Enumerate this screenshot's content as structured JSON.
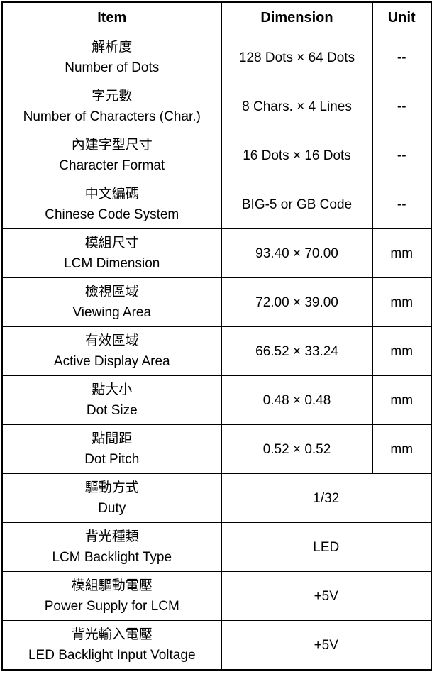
{
  "header": {
    "item": "Item",
    "dimension": "Dimension",
    "unit": "Unit"
  },
  "rows": [
    {
      "zh": "解析度",
      "en": "Number of Dots",
      "dimension": "128 Dots × 64 Dots",
      "unit": "--"
    },
    {
      "zh": "字元數",
      "en": "Number of Characters (Char.)",
      "dimension": "8 Chars. × 4 Lines",
      "unit": "--"
    },
    {
      "zh": "內建字型尺寸",
      "en": "Character Format",
      "dimension": "16 Dots × 16 Dots",
      "unit": "--"
    },
    {
      "zh": "中文編碼",
      "en": "Chinese Code System",
      "dimension": "BIG-5 or GB Code",
      "unit": "--"
    },
    {
      "zh": "模組尺寸",
      "en": "LCM Dimension",
      "dimension": "93.40 × 70.00",
      "unit": "mm"
    },
    {
      "zh": "檢視區域",
      "en": "Viewing Area",
      "dimension": "72.00 × 39.00",
      "unit": "mm"
    },
    {
      "zh": "有效區域",
      "en": "Active Display Area",
      "dimension": "66.52 × 33.24",
      "unit": "mm"
    },
    {
      "zh": "點大小",
      "en": "Dot Size",
      "dimension": "0.48 × 0.48",
      "unit": "mm"
    },
    {
      "zh": "點間距",
      "en": "Dot Pitch",
      "dimension": "0.52 × 0.52",
      "unit": "mm"
    },
    {
      "zh": "驅動方式",
      "en": "Duty",
      "dimension": "1/32"
    },
    {
      "zh": "背光種類",
      "en": "LCM Backlight Type",
      "dimension": "LED"
    },
    {
      "zh": "模組驅動電壓",
      "en": "Power Supply for LCM",
      "dimension": "+5V"
    },
    {
      "zh": "背光輸入電壓",
      "en": "LED Backlight Input Voltage",
      "dimension": "+5V"
    }
  ]
}
